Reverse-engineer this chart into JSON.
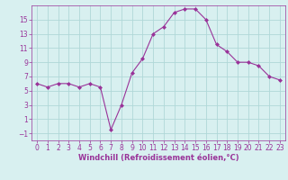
{
  "x": [
    0,
    1,
    2,
    3,
    4,
    5,
    6,
    7,
    8,
    9,
    10,
    11,
    12,
    13,
    14,
    15,
    16,
    17,
    18,
    19,
    20,
    21,
    22,
    23
  ],
  "y": [
    6,
    5.5,
    6,
    6,
    5.5,
    6,
    5.5,
    -0.5,
    3,
    7.5,
    9.5,
    13,
    14,
    16,
    16.5,
    16.5,
    15,
    11.5,
    10.5,
    9,
    9,
    8.5,
    7,
    6.5
  ],
  "line_color": "#993399",
  "marker": "D",
  "marker_size": 2.0,
  "bg_color": "#d8f0f0",
  "grid_color": "#b0d8d8",
  "xlabel": "Windchill (Refroidissement éolien,°C)",
  "xlabel_color": "#993399",
  "tick_color": "#993399",
  "spine_color": "#993399",
  "ylim": [
    -2,
    17
  ],
  "xlim": [
    -0.5,
    23.5
  ],
  "yticks": [
    -1,
    1,
    3,
    5,
    7,
    9,
    11,
    13,
    15
  ],
  "xticks": [
    0,
    1,
    2,
    3,
    4,
    5,
    6,
    7,
    8,
    9,
    10,
    11,
    12,
    13,
    14,
    15,
    16,
    17,
    18,
    19,
    20,
    21,
    22,
    23
  ],
  "tick_fontsize": 5.5,
  "xlabel_fontsize": 6.0
}
